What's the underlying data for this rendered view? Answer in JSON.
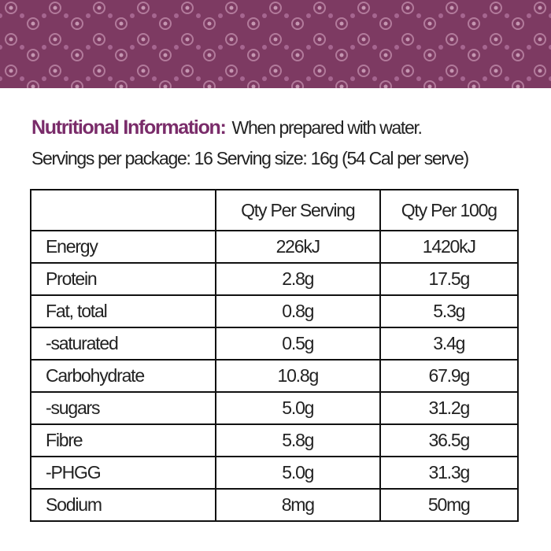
{
  "heading": {
    "title": "Nutritional Information:",
    "subtitle": "When prepared with water."
  },
  "servings": "Servings per package: 16 Serving size: 16g (54 Cal per serve)",
  "table": {
    "header": [
      "Qty Per Serving",
      "Qty Per 100g"
    ],
    "rows": [
      [
        "Energy",
        "226kJ",
        "1420kJ"
      ],
      [
        "Protein",
        "2.8g",
        "17.5g"
      ],
      [
        "Fat, total",
        "0.8g",
        "5.3g"
      ],
      [
        "-saturated",
        "0.5g",
        "3.4g"
      ],
      [
        "Carbohydrate",
        "10.8g",
        "67.9g"
      ],
      [
        "-sugars",
        "5.0g",
        "31.2g"
      ],
      [
        "Fibre",
        "5.8g",
        "36.5g"
      ],
      [
        "-PHGG",
        "5.0g",
        "31.3g"
      ],
      [
        "Sodium",
        "8mg",
        "50mg"
      ]
    ]
  }
}
